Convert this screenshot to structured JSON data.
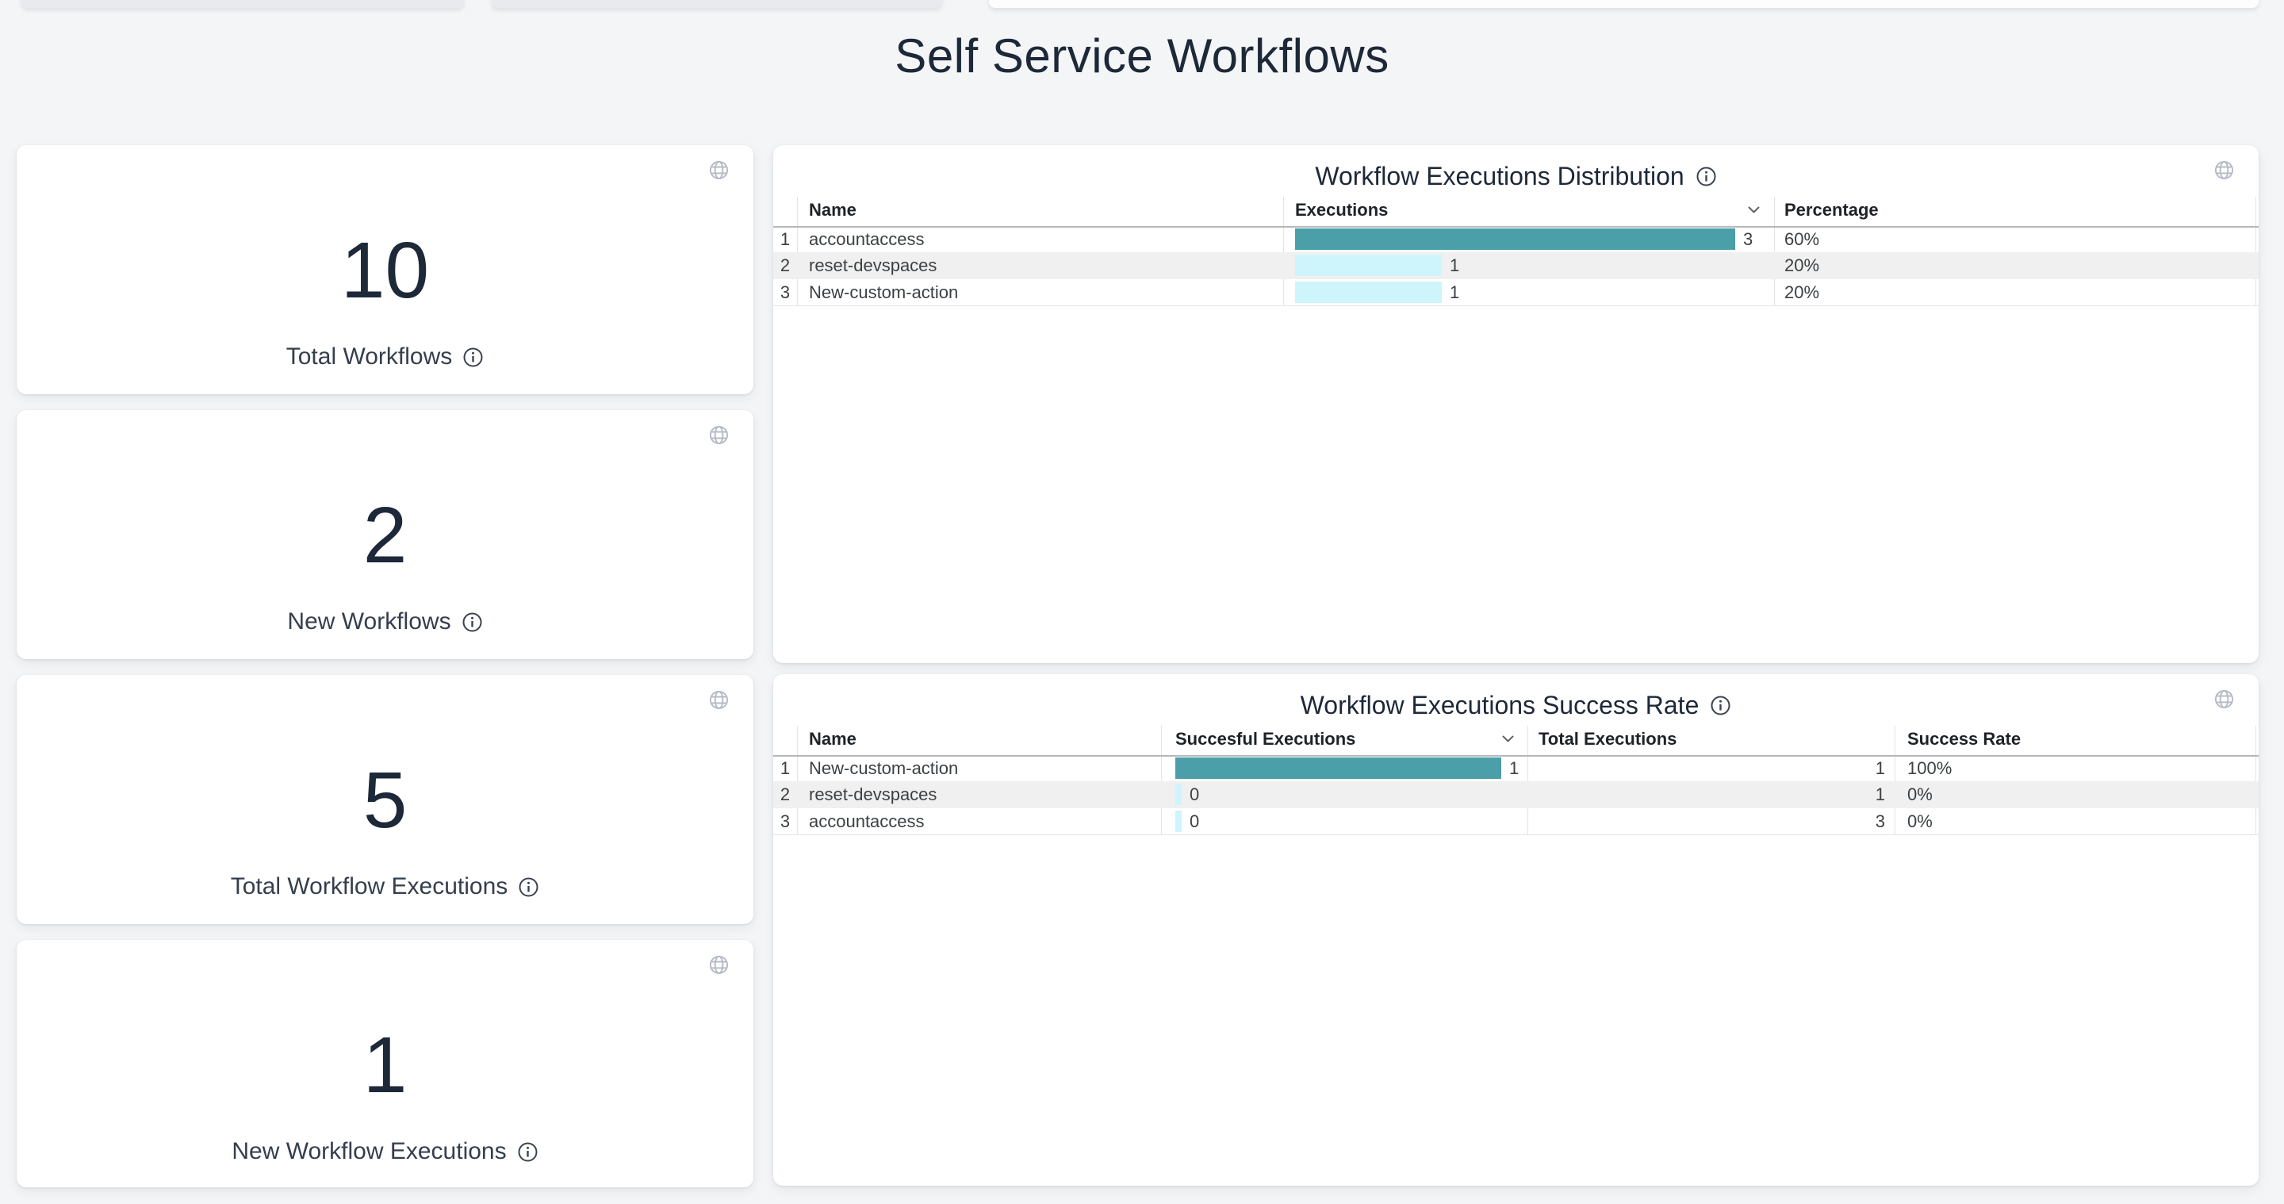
{
  "page": {
    "title": "Self Service Workflows"
  },
  "colors": {
    "bar_primary": "#4A9FA8",
    "bar_secondary": "#CEF5FB",
    "accent_text": "#1D2838",
    "zebra_row": "#F0F0F0",
    "page_background": "#F4F5F7"
  },
  "icons": {
    "card_corner": "globe-icon",
    "label_suffix": "info-icon",
    "sort_indicator": "chevron-down-icon"
  },
  "stat_cards": [
    {
      "value": "10",
      "label": "Total Workflows"
    },
    {
      "value": "2",
      "label": "New Workflows"
    },
    {
      "value": "5",
      "label": "Total Workflow Executions"
    },
    {
      "value": "1",
      "label": "New Workflow Executions"
    }
  ],
  "tables": [
    {
      "title": "Workflow Executions Distribution",
      "columns": [
        "Name",
        "Executions",
        "Percentage"
      ],
      "sorted_by": "Executions",
      "bar_max": 3,
      "rows": [
        {
          "index": "1",
          "name": "accountaccess",
          "executions": 3,
          "percentage": "60%"
        },
        {
          "index": "2",
          "name": "reset-devspaces",
          "executions": 1,
          "percentage": "20%"
        },
        {
          "index": "3",
          "name": "New-custom-action",
          "executions": 1,
          "percentage": "20%"
        }
      ]
    },
    {
      "title": "Workflow Executions Success Rate",
      "columns": [
        "Name",
        "Succesful Executions",
        "Total Executions",
        "Success Rate"
      ],
      "sorted_by": "Succesful Executions",
      "bar_max": 1,
      "rows": [
        {
          "index": "1",
          "name": "New-custom-action",
          "succesful_executions": 1,
          "total_executions": "1",
          "success_rate": "100%"
        },
        {
          "index": "2",
          "name": "reset-devspaces",
          "succesful_executions": 0,
          "total_executions": "1",
          "success_rate": "0%"
        },
        {
          "index": "3",
          "name": "accountaccess",
          "succesful_executions": 0,
          "total_executions": "3",
          "success_rate": "0%"
        }
      ]
    }
  ]
}
